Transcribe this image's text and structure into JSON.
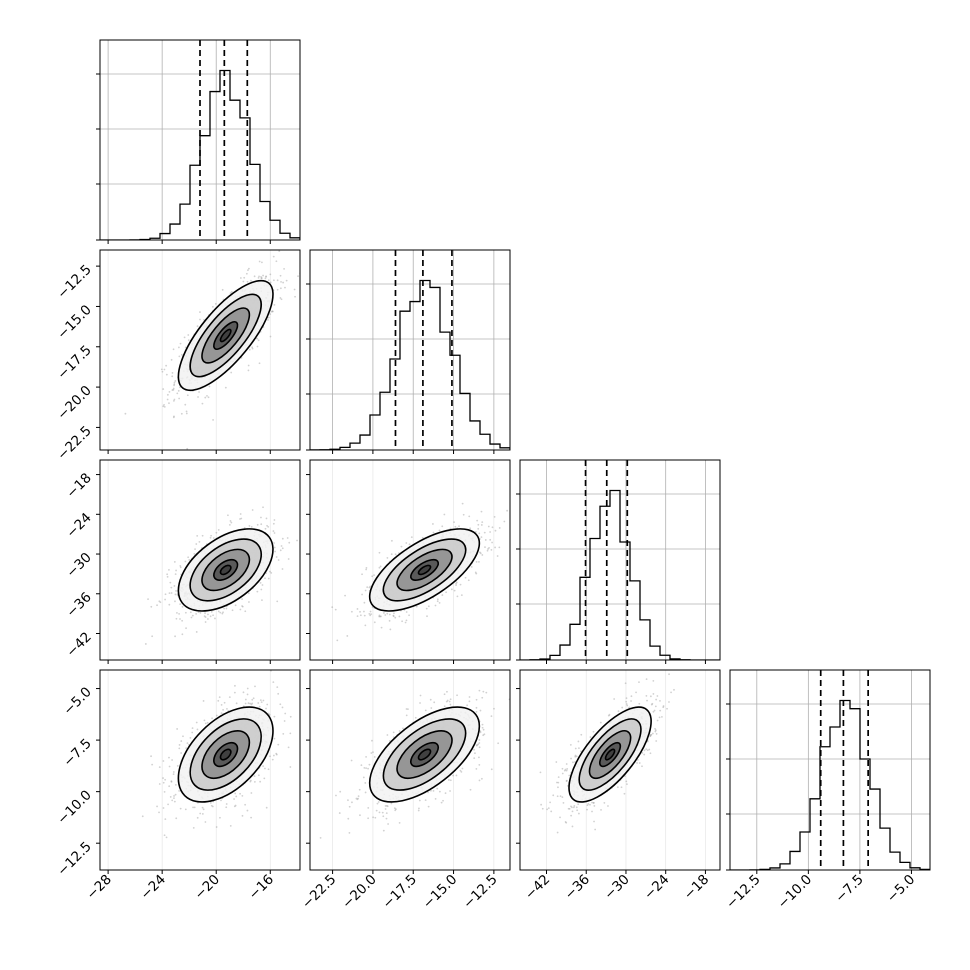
{
  "chart_data": {
    "type": "corner",
    "grid": true,
    "params": [
      {
        "ticks": [
          -28,
          -24,
          -20,
          -16
        ],
        "tick_labels": [
          "−28",
          "−24",
          "−20",
          "−16"
        ],
        "range": [
          -28.6,
          -13.8
        ],
        "quantiles": [
          -21.2,
          -19.4,
          -17.7
        ],
        "hist_peak": -19.3,
        "hist_sigma": 1.75
      },
      {
        "ticks": [
          -22.5,
          -20.0,
          -17.5,
          -15.0,
          -12.5
        ],
        "tick_labels": [
          "−22.5",
          "−20.0",
          "−17.5",
          "−15.0",
          "−12.5"
        ],
        "range": [
          -23.9,
          -11.5
        ],
        "quantiles": [
          -18.6,
          -16.9,
          -15.1
        ],
        "hist_peak": -16.8,
        "hist_sigma": 1.7
      },
      {
        "ticks": [
          -42,
          -36,
          -30,
          -24,
          -18
        ],
        "tick_labels": [
          "−42",
          "−36",
          "−30",
          "−24",
          "−18"
        ],
        "range": [
          -46.0,
          -15.8
        ],
        "quantiles": [
          -36.1,
          -32.9,
          -29.8
        ],
        "hist_peak": -32.4,
        "hist_sigma": 3.1
      },
      {
        "ticks": [
          -12.5,
          -10.0,
          -7.5,
          -5.0
        ],
        "tick_labels": [
          "−12.5",
          "−10.0",
          "−7.5",
          "−5.0"
        ],
        "range": [
          -13.8,
          -4.1
        ],
        "quantiles": [
          -9.4,
          -8.3,
          -7.1
        ],
        "hist_peak": -8.2,
        "hist_sigma": 1.15
      }
    ],
    "correlations": [
      [
        1.0,
        0.75,
        0.5,
        0.5
      ],
      [
        0.75,
        1.0,
        0.65,
        0.6
      ],
      [
        0.5,
        0.65,
        1.0,
        0.7
      ],
      [
        0.5,
        0.6,
        0.7,
        1.0
      ]
    ],
    "contour_levels_sigma": [
      0.5,
      1.0,
      1.5,
      2.0
    ],
    "colors": {
      "line": "#000000",
      "grid": "#b0b0b0",
      "points": "#9a9a9a",
      "density": "#404040"
    }
  }
}
